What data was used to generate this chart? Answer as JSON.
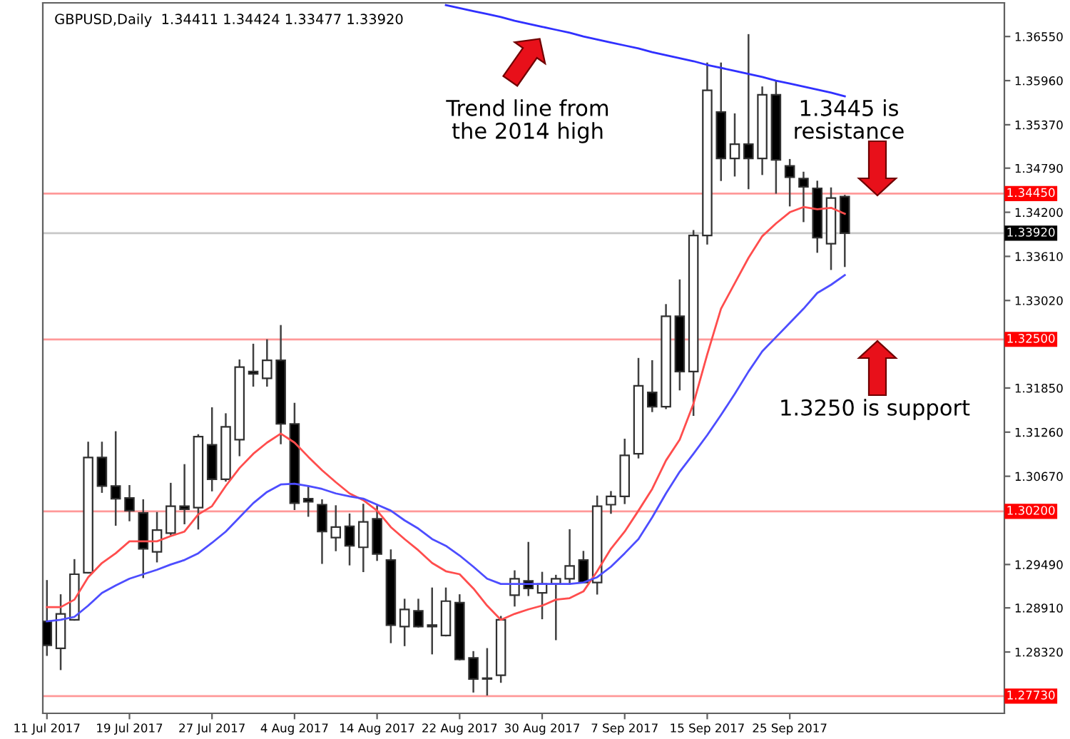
{
  "chart_data": {
    "type": "candlestick",
    "title": "GBPUSD,Daily  1.34411 1.34424 1.33477 1.33920",
    "categories": [
      "11 Jul 2017",
      null,
      null,
      null,
      null,
      null,
      "19 Jul 2017",
      null,
      null,
      null,
      null,
      null,
      "27 Jul 2017",
      null,
      null,
      null,
      null,
      null,
      "4 Aug 2017",
      null,
      null,
      null,
      null,
      null,
      "14 Aug 2017",
      null,
      null,
      null,
      null,
      null,
      "22 Aug 2017",
      null,
      null,
      null,
      null,
      null,
      "30 Aug 2017",
      null,
      null,
      null,
      null,
      null,
      "7 Sep 2017",
      null,
      null,
      null,
      null,
      null,
      "15 Sep 2017",
      null,
      null,
      null,
      null,
      null,
      "25 Sep 2017",
      null,
      null,
      null,
      null
    ],
    "ohlc": [
      [
        1.2873,
        1.2927,
        1.2828,
        1.2841
      ],
      [
        1.2837,
        1.2908,
        1.2809,
        1.2883
      ],
      [
        1.2875,
        1.2955,
        1.2875,
        1.2936
      ],
      [
        1.2938,
        1.3112,
        1.2938,
        1.3092
      ],
      [
        1.3092,
        1.3112,
        1.3046,
        1.3054
      ],
      [
        1.3054,
        1.3126,
        1.3002,
        1.3037
      ],
      [
        1.3038,
        1.3054,
        1.3008,
        1.3021
      ],
      [
        1.3018,
        1.3035,
        1.2932,
        1.297
      ],
      [
        1.2966,
        1.3018,
        1.2953,
        1.2995
      ],
      [
        1.2991,
        1.3057,
        1.2989,
        1.3027
      ],
      [
        1.3027,
        1.3082,
        1.3004,
        1.3023
      ],
      [
        1.3025,
        1.3122,
        1.2997,
        1.312
      ],
      [
        1.3109,
        1.3158,
        1.3048,
        1.3063
      ],
      [
        1.3063,
        1.315,
        1.3061,
        1.3133
      ],
      [
        1.3116,
        1.3222,
        1.3095,
        1.3213
      ],
      [
        1.3207,
        1.3243,
        1.3188,
        1.3204
      ],
      [
        1.3198,
        1.3249,
        1.3188,
        1.3222
      ],
      [
        1.3222,
        1.3268,
        1.3111,
        1.3137
      ],
      [
        1.3137,
        1.3164,
        1.3023,
        1.3031
      ],
      [
        1.3037,
        1.3052,
        1.3014,
        1.3033
      ],
      [
        1.3029,
        1.3035,
        1.2951,
        1.2993
      ],
      [
        1.2985,
        1.3027,
        1.2968,
        1.2999
      ],
      [
        1.3,
        1.3016,
        1.2949,
        1.2974
      ],
      [
        1.2972,
        1.3029,
        1.294,
        1.3006
      ],
      [
        1.301,
        1.3027,
        1.2955,
        1.2963
      ],
      [
        1.2955,
        1.2968,
        1.2845,
        1.2868
      ],
      [
        1.2866,
        1.2902,
        1.2841,
        1.2889
      ],
      [
        1.2887,
        1.2902,
        1.2866,
        1.2866
      ],
      [
        1.2868,
        1.2917,
        1.283,
        1.2866
      ],
      [
        1.2854,
        1.2917,
        1.2854,
        1.29
      ],
      [
        1.2898,
        1.2908,
        1.2822,
        1.2822
      ],
      [
        1.2824,
        1.2832,
        1.2779,
        1.2796
      ],
      [
        1.2796,
        1.2836,
        1.2775,
        1.2797
      ],
      [
        1.2801,
        1.2879,
        1.2792,
        1.2875
      ],
      [
        1.2908,
        1.294,
        1.2894,
        1.293
      ],
      [
        1.2927,
        1.2978,
        1.2908,
        1.2917
      ],
      [
        1.2911,
        1.2938,
        1.2877,
        1.2923
      ],
      [
        1.2923,
        1.2934,
        1.2849,
        1.293
      ],
      [
        1.293,
        1.2995,
        1.2923,
        1.2947
      ],
      [
        1.2955,
        1.2966,
        1.2925,
        1.2925
      ],
      [
        1.2925,
        1.304,
        1.291,
        1.3027
      ],
      [
        1.3029,
        1.3046,
        1.3018,
        1.304
      ],
      [
        1.304,
        1.3116,
        1.3031,
        1.3095
      ],
      [
        1.3097,
        1.3224,
        1.3092,
        1.3188
      ],
      [
        1.3179,
        1.3221,
        1.3154,
        1.316
      ],
      [
        1.316,
        1.3296,
        1.3158,
        1.3281
      ],
      [
        1.3281,
        1.3329,
        1.3183,
        1.3207
      ],
      [
        1.3207,
        1.3395,
        1.3149,
        1.3389
      ],
      [
        1.3389,
        1.3619,
        1.3378,
        1.3583
      ],
      [
        1.3554,
        1.3619,
        1.3463,
        1.3492
      ],
      [
        1.3492,
        1.3551,
        1.3469,
        1.3511
      ],
      [
        1.3511,
        1.3657,
        1.3452,
        1.3492
      ],
      [
        1.3492,
        1.3587,
        1.3471,
        1.3577
      ],
      [
        1.3577,
        1.3594,
        1.3446,
        1.349
      ],
      [
        1.3482,
        1.349,
        1.3429,
        1.3467
      ],
      [
        1.3465,
        1.3473,
        1.3408,
        1.3454
      ],
      [
        1.3452,
        1.3461,
        1.3367,
        1.3386
      ],
      [
        1.3378,
        1.3452,
        1.3344,
        1.3439
      ],
      [
        1.3441,
        1.3442,
        1.3348,
        1.3392
      ]
    ],
    "series": [
      {
        "type": "line",
        "color": "#ff4d4d",
        "values": [
          1.2892,
          1.2892,
          1.2902,
          1.2932,
          1.2951,
          1.2964,
          1.298,
          1.298,
          1.298,
          1.2987,
          1.2993,
          1.3016,
          1.3027,
          1.3054,
          1.3078,
          1.3097,
          1.3112,
          1.3124,
          1.3112,
          1.3093,
          1.3075,
          1.3059,
          1.3044,
          1.3035,
          1.3021,
          1.2999,
          1.2983,
          1.2968,
          1.2951,
          1.294,
          1.2936,
          1.2917,
          1.2894,
          1.2875,
          1.2883,
          1.2889,
          1.2894,
          1.2902,
          1.2904,
          1.2913,
          1.294,
          1.297,
          1.2993,
          1.3021,
          1.305,
          1.3088,
          1.3116,
          1.3164,
          1.323,
          1.3291,
          1.3325,
          1.3359,
          1.3388,
          1.3405,
          1.342,
          1.3427,
          1.3424,
          1.3426,
          1.3418
        ]
      },
      {
        "type": "line",
        "color": "#4d4dff",
        "values": [
          1.2873,
          1.2875,
          1.2879,
          1.2894,
          1.2911,
          1.2921,
          1.293,
          1.2936,
          1.2942,
          1.2949,
          1.2955,
          1.2964,
          1.2978,
          1.2993,
          1.3012,
          1.3031,
          1.3046,
          1.3056,
          1.3057,
          1.3054,
          1.305,
          1.3044,
          1.304,
          1.3037,
          1.3029,
          1.3021,
          1.3008,
          1.2997,
          1.2983,
          1.2974,
          1.2961,
          1.2946,
          1.293,
          1.2923,
          1.2923,
          1.2923,
          1.2923,
          1.2923,
          1.2923,
          1.2925,
          1.2932,
          1.2946,
          1.2964,
          1.2983,
          1.3012,
          1.3044,
          1.3073,
          1.3097,
          1.3122,
          1.3149,
          1.3177,
          1.3207,
          1.3234,
          1.3253,
          1.3272,
          1.3291,
          1.3312,
          1.3323,
          1.3336
        ]
      },
      {
        "type": "line",
        "color": "#3030ff",
        "values": [
          null,
          null,
          null,
          null,
          null,
          null,
          null,
          null,
          null,
          null,
          null,
          null,
          null,
          null,
          null,
          null,
          null,
          null,
          null,
          null,
          null,
          null,
          null,
          null,
          null,
          null,
          null,
          null,
          null,
          1.3697,
          1.3693,
          1.3689,
          1.3685,
          1.3681,
          1.3676,
          1.3672,
          1.3668,
          1.3664,
          1.366,
          1.3655,
          1.3651,
          1.3647,
          1.3643,
          1.3639,
          1.3634,
          1.363,
          1.3626,
          1.3622,
          1.3617,
          1.3613,
          1.3609,
          1.3605,
          1.3601,
          1.3596,
          1.3592,
          1.3588,
          1.3584,
          1.358,
          1.3575
        ]
      }
    ],
    "ylim": [
      1.275,
      1.37
    ],
    "yticks": [
      {
        "value": 1.3655,
        "label": "1.36550"
      },
      {
        "value": 1.3596,
        "label": "1.35960"
      },
      {
        "value": 1.3537,
        "label": "1.35370"
      },
      {
        "value": 1.3479,
        "label": "1.34790"
      },
      {
        "value": 1.342,
        "label": "1.34200"
      },
      {
        "value": 1.3361,
        "label": "1.33610"
      },
      {
        "value": 1.3302,
        "label": "1.33020"
      },
      {
        "value": 1.3185,
        "label": "1.31850"
      },
      {
        "value": 1.3126,
        "label": "1.31260"
      },
      {
        "value": 1.3067,
        "label": "1.30670"
      },
      {
        "value": 1.2949,
        "label": "1.29490"
      },
      {
        "value": 1.2891,
        "label": "1.28910"
      },
      {
        "value": 1.2832,
        "label": "1.28320"
      }
    ],
    "ref_lines": [
      {
        "axis": "y",
        "value": 1.3445,
        "label": "1.34450",
        "color": "#ff9999"
      },
      {
        "axis": "y",
        "value": 1.3392,
        "label": "1.33920",
        "color": "#c8c8c8"
      },
      {
        "axis": "y",
        "value": 1.325,
        "label": "1.32500",
        "color": "#ff9999"
      },
      {
        "axis": "y",
        "value": 1.302,
        "label": "1.30200",
        "color": "#ff9999"
      },
      {
        "axis": "y",
        "value": 1.2773,
        "label": "1.27730",
        "color": "#ff9999"
      }
    ],
    "annotations": [
      "Trend line from\nthe 2014 high",
      "1.3445 is\nresistance",
      "1.3250 is support"
    ],
    "grid": false
  }
}
